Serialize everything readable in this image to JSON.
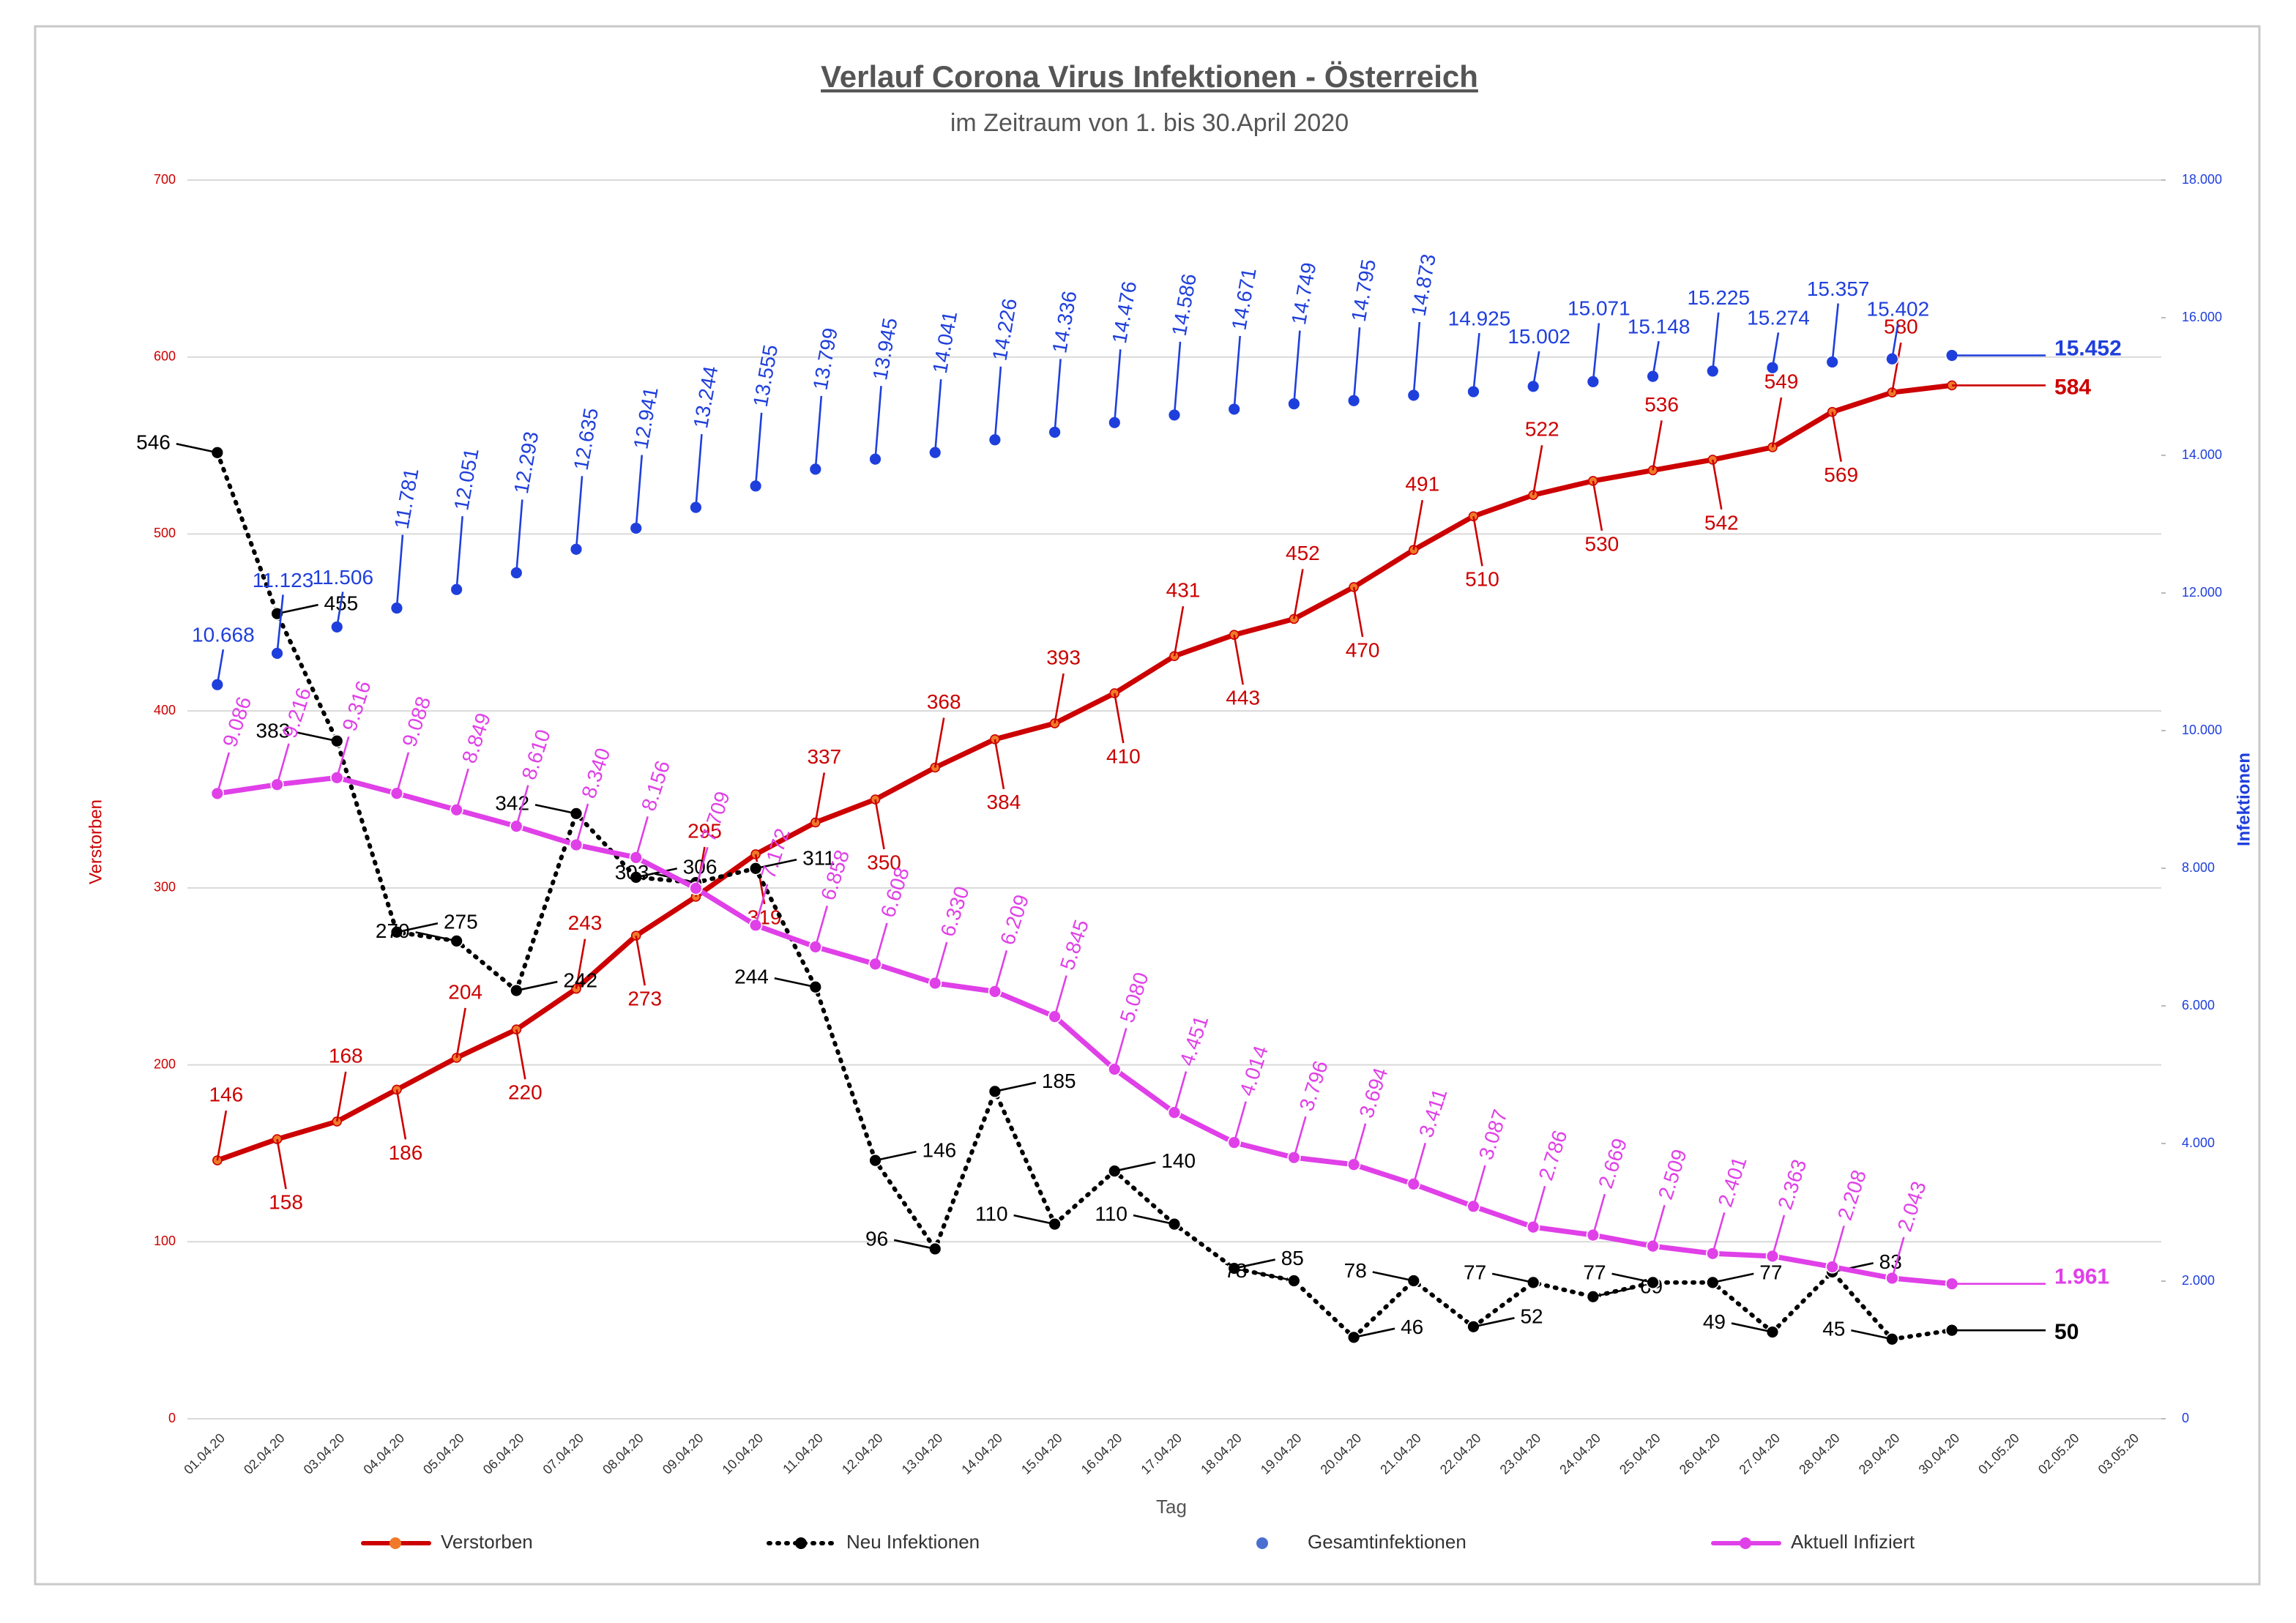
{
  "chart_data": {
    "type": "line",
    "title": "Verlauf Corona Virus Infektionen - Österreich",
    "subtitle": "im Zeitraum von 1. bis 30.April 2020",
    "x_label": "Tag",
    "y_label": "Verstorben",
    "y2_label": "Infektionen",
    "categories": [
      "01.04.20",
      "02.04.20",
      "03.04.20",
      "04.04.20",
      "05.04.20",
      "06.04.20",
      "07.04.20",
      "08.04.20",
      "09.04.20",
      "10.04.20",
      "11.04.20",
      "12.04.20",
      "13.04.20",
      "14.04.20",
      "15.04.20",
      "16.04.20",
      "17.04.20",
      "18.04.20",
      "19.04.20",
      "20.04.20",
      "21.04.20",
      "22.04.20",
      "23.04.20",
      "24.04.20",
      "25.04.20",
      "26.04.20",
      "27.04.20",
      "28.04.20",
      "29.04.20",
      "30.04.20",
      "01.05.20",
      "02.05.20",
      "03.05.20"
    ],
    "ylim": [
      0,
      700
    ],
    "yticks": [
      0,
      100,
      200,
      300,
      400,
      500,
      600,
      700
    ],
    "y2lim": [
      0,
      18000
    ],
    "y2ticks": [
      0,
      {
        "value": 2000,
        "label": "2.000"
      },
      {
        "value": 4000,
        "label": "4.000"
      },
      {
        "value": 6000,
        "label": "6.000"
      },
      {
        "value": 8000,
        "label": "8.000"
      },
      {
        "value": 10000,
        "label": "10.000"
      },
      {
        "value": 12000,
        "label": "12.000"
      },
      {
        "value": 14000,
        "label": "14.000"
      },
      {
        "value": 16000,
        "label": "16.000"
      },
      {
        "value": 18000,
        "label": "18.000"
      }
    ],
    "grid": true,
    "legend": "bottom",
    "series": [
      {
        "name": "Verstorben",
        "color": "#cc0000",
        "style": "solid",
        "values": [
          146,
          158,
          168,
          186,
          204,
          220,
          243,
          273,
          295,
          319,
          337,
          350,
          368,
          384,
          393,
          410,
          431,
          443,
          452,
          470,
          491,
          510,
          522,
          530,
          536,
          542,
          549,
          569,
          580,
          584,
          null,
          null,
          null
        ]
      },
      {
        "name": "Neu Infektionen",
        "color": "#000000",
        "style": "dotted",
        "values": [
          546,
          455,
          383,
          275,
          270,
          242,
          342,
          306,
          303,
          311,
          244,
          146,
          96,
          185,
          110,
          140,
          110,
          85,
          78,
          46,
          78,
          52,
          77,
          69,
          77,
          77,
          49,
          83,
          45,
          50,
          null,
          null,
          null
        ]
      },
      {
        "name": "Gesamtinfektionen",
        "color": "#1f3fdc",
        "style": "markers",
        "axis": "y2",
        "values": [
          10668,
          11123,
          11506,
          11781,
          12051,
          12293,
          12635,
          12941,
          13244,
          13555,
          13799,
          13945,
          14041,
          14226,
          14336,
          14476,
          14586,
          14671,
          14749,
          14795,
          14873,
          14925,
          15002,
          15071,
          15148,
          15225,
          15274,
          15357,
          15402,
          15452,
          null,
          null,
          null
        ],
        "value_labels": [
          "10.668",
          "11.123",
          "11.506",
          "11.781",
          "12.051",
          "12.293",
          "12.635",
          "12.941",
          "13.244",
          "13.555",
          "13.799",
          "13.945",
          "14.041",
          "14.226",
          "14.336",
          "14.476",
          "14.586",
          "14.671",
          "14.749",
          "14.795",
          "14.873",
          "14.925",
          "15.002",
          "15.071",
          "15.148",
          "15.225",
          "15.274",
          "15.357",
          "15.402",
          "15.452",
          null,
          null,
          null
        ]
      },
      {
        "name": "Aktuell Infiziert",
        "color": "#e040e8",
        "style": "solid",
        "axis": "y2",
        "values": [
          9086,
          9216,
          9316,
          9088,
          8849,
          8610,
          8340,
          8156,
          7709,
          7172,
          6858,
          6608,
          6330,
          6209,
          5845,
          5080,
          4451,
          4014,
          3796,
          3694,
          3411,
          3087,
          2786,
          2669,
          2509,
          2401,
          2363,
          2208,
          2043,
          1961,
          null,
          null,
          null
        ],
        "value_labels": [
          "9.086",
          "9.216",
          "9.316",
          "9.088",
          "8.849",
          "8.610",
          "8.340",
          "8.156",
          "7.709",
          "7.172",
          "6.858",
          "6.608",
          "6.330",
          "6.209",
          "5.845",
          "5.080",
          "4.451",
          "4.014",
          "3.796",
          "3.694",
          "3.411",
          "3.087",
          "2.786",
          "2.669",
          "2.509",
          "2.401",
          "2.363",
          "2.208",
          "2.043",
          "1.961",
          null,
          null,
          null
        ]
      }
    ]
  }
}
